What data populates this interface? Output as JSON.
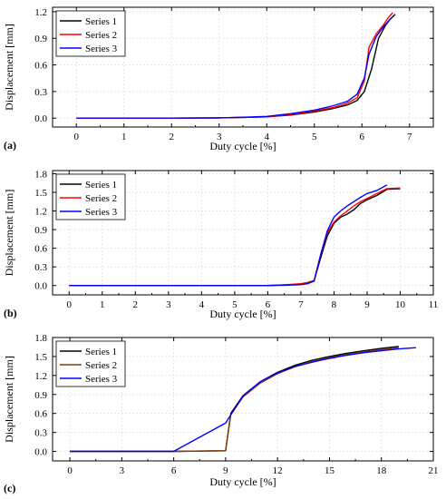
{
  "chart_data": [
    {
      "type": "line",
      "panel_label": "(a)",
      "xlabel": "Duty cycle [%]",
      "ylabel": "Displacement [mm]",
      "xlim": [
        -0.5,
        7.5
      ],
      "ylim": [
        -0.1,
        1.25
      ],
      "xticks": [
        0,
        1,
        2,
        3,
        4,
        5,
        6,
        7
      ],
      "xtick_labels": [
        "0",
        "1",
        "2",
        "3",
        "4",
        "5",
        "6",
        "7"
      ],
      "yticks": [
        0,
        0.3,
        0.6,
        0.9,
        1.2
      ],
      "ytick_labels": [
        "0.0",
        "0.3",
        "0.6",
        "0.9",
        "1.2"
      ],
      "grid": true,
      "legend_position": "top-left",
      "series": [
        {
          "name": "Series 1",
          "color": "#000000",
          "x": [
            0,
            1,
            2,
            3,
            3.5,
            4,
            4.5,
            5,
            5.4,
            5.7,
            5.9,
            6.05,
            6.2,
            6.35,
            6.5,
            6.6,
            6.7
          ],
          "y": [
            0,
            0,
            0,
            0.003,
            0.008,
            0.015,
            0.035,
            0.07,
            0.11,
            0.15,
            0.2,
            0.3,
            0.55,
            0.9,
            1.05,
            1.12,
            1.17
          ]
        },
        {
          "name": "Series 2",
          "color": "#ff0000",
          "x": [
            0,
            1,
            2,
            3,
            3.5,
            4,
            4.5,
            5,
            5.4,
            5.7,
            5.9,
            6.05,
            6.15,
            6.3,
            6.45,
            6.55,
            6.65
          ],
          "y": [
            0,
            0,
            0,
            0.003,
            0.008,
            0.015,
            0.04,
            0.08,
            0.12,
            0.17,
            0.23,
            0.42,
            0.8,
            0.95,
            1.05,
            1.13,
            1.19
          ]
        },
        {
          "name": "Series 3",
          "color": "#0000ff",
          "x": [
            0,
            1,
            2,
            3,
            3.5,
            4,
            4.5,
            5,
            5.4,
            5.7,
            5.9,
            6.05,
            6.15,
            6.3,
            6.45,
            6.6
          ],
          "y": [
            0,
            0,
            0,
            0.003,
            0.01,
            0.02,
            0.05,
            0.09,
            0.14,
            0.19,
            0.27,
            0.45,
            0.72,
            0.92,
            1.03,
            1.12
          ]
        }
      ]
    },
    {
      "type": "line",
      "panel_label": "(b)",
      "xlabel": "Duty cycle [%]",
      "ylabel": "Displacement [mm]",
      "xlim": [
        -0.5,
        11
      ],
      "ylim": [
        -0.15,
        1.85
      ],
      "xticks": [
        0,
        1,
        2,
        3,
        4,
        5,
        6,
        7,
        8,
        9,
        10,
        11
      ],
      "xtick_labels": [
        "0",
        "1",
        "2",
        "3",
        "4",
        "5",
        "6",
        "7",
        "8",
        "9",
        "10",
        "11"
      ],
      "yticks": [
        0,
        0.3,
        0.6,
        0.9,
        1.2,
        1.5,
        1.8
      ],
      "ytick_labels": [
        "0.0",
        "0.3",
        "0.6",
        "0.9",
        "1.2",
        "1.5",
        "1.8"
      ],
      "grid": true,
      "legend_position": "top-left",
      "series": [
        {
          "name": "Series 1",
          "color": "#000000",
          "x": [
            0,
            2,
            4,
            6,
            6.5,
            7,
            7.2,
            7.4,
            7.6,
            7.8,
            8,
            8.2,
            8.4,
            8.6,
            8.8,
            9,
            9.3,
            9.6,
            10
          ],
          "y": [
            0,
            0,
            0,
            0,
            0.01,
            0.02,
            0.04,
            0.08,
            0.45,
            0.8,
            1.0,
            1.1,
            1.15,
            1.22,
            1.32,
            1.38,
            1.45,
            1.55,
            1.56
          ]
        },
        {
          "name": "Series 2",
          "color": "#ff0000",
          "x": [
            0,
            2,
            4,
            6,
            6.5,
            7,
            7.2,
            7.4,
            7.6,
            7.8,
            8,
            8.2,
            8.4,
            8.6,
            8.8,
            9,
            9.3,
            9.6,
            10
          ],
          "y": [
            0,
            0,
            0,
            0,
            0.01,
            0.03,
            0.05,
            0.08,
            0.5,
            0.85,
            1.02,
            1.12,
            1.2,
            1.28,
            1.35,
            1.4,
            1.48,
            1.56,
            1.57
          ]
        },
        {
          "name": "Series 3",
          "color": "#0000ff",
          "x": [
            0,
            2,
            4,
            6,
            6.5,
            7,
            7.2,
            7.4,
            7.6,
            7.8,
            8,
            8.2,
            8.4,
            8.6,
            8.8,
            9,
            9.3,
            9.6
          ],
          "y": [
            0,
            0,
            0,
            0,
            0.005,
            0.015,
            0.03,
            0.07,
            0.5,
            0.88,
            1.1,
            1.2,
            1.28,
            1.35,
            1.42,
            1.48,
            1.53,
            1.62
          ]
        }
      ]
    },
    {
      "type": "line",
      "panel_label": "(c)",
      "xlabel": "Duty cycle [%]",
      "ylabel": "Displacement [mm]",
      "xlim": [
        -1,
        21
      ],
      "ylim": [
        -0.15,
        1.8
      ],
      "xticks": [
        0,
        3,
        6,
        9,
        12,
        15,
        18,
        21
      ],
      "xtick_labels": [
        "0",
        "3",
        "6",
        "9",
        "12",
        "15",
        "18",
        "21"
      ],
      "yticks": [
        0,
        0.3,
        0.6,
        0.9,
        1.2,
        1.5,
        1.8
      ],
      "ytick_labels": [
        "0.0",
        "0.3",
        "0.6",
        "0.9",
        "1.2",
        "1.5",
        "1.8"
      ],
      "grid": true,
      "legend_position": "top-left",
      "series": [
        {
          "name": "Series 1",
          "color": "#000000",
          "x": [
            0,
            3,
            6,
            9,
            9.3,
            10,
            11,
            12,
            13,
            14,
            15,
            16,
            17,
            18,
            19
          ],
          "y": [
            0,
            0,
            0,
            0.01,
            0.6,
            0.88,
            1.1,
            1.25,
            1.36,
            1.44,
            1.5,
            1.55,
            1.59,
            1.63,
            1.66
          ]
        },
        {
          "name": "Series 2",
          "color": "#8b3a0a",
          "x": [
            0,
            3,
            6,
            9,
            9.3,
            10,
            11,
            12,
            13,
            14,
            15,
            16,
            17,
            18,
            19
          ],
          "y": [
            0,
            0,
            0,
            0.01,
            0.58,
            0.86,
            1.08,
            1.23,
            1.34,
            1.42,
            1.48,
            1.53,
            1.57,
            1.61,
            1.64
          ]
        },
        {
          "name": "Series 3",
          "color": "#0000ff",
          "x": [
            0,
            3,
            6,
            9,
            10,
            11,
            12,
            13,
            14,
            15,
            16,
            17,
            18,
            19,
            20
          ],
          "y": [
            0,
            0,
            0,
            0.45,
            0.88,
            1.1,
            1.24,
            1.34,
            1.41,
            1.47,
            1.52,
            1.56,
            1.59,
            1.62,
            1.64
          ]
        }
      ]
    }
  ]
}
